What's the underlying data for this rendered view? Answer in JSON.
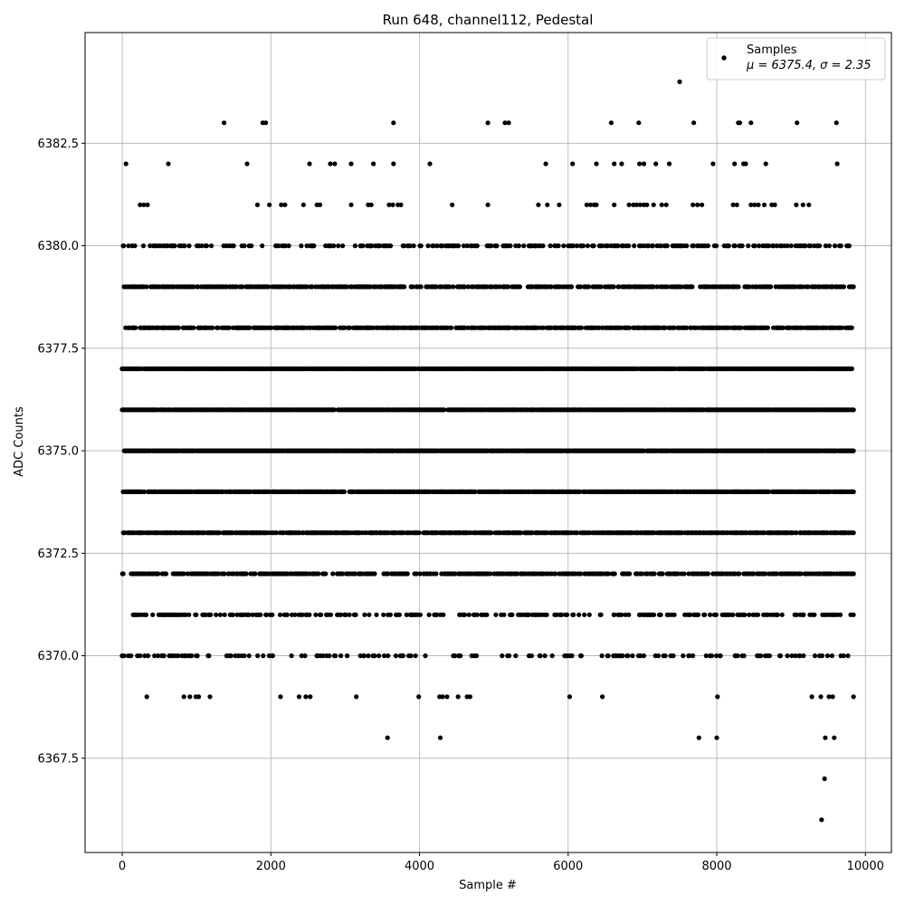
{
  "chart_data": {
    "type": "scatter",
    "title": "Run 648, channel112, Pedestal",
    "xlabel": "Sample #",
    "ylabel": "ADC Counts",
    "xlim": [
      -500,
      10350
    ],
    "ylim": [
      6365.2,
      6385.2
    ],
    "x_ticks": [
      0,
      2000,
      4000,
      6000,
      8000,
      10000
    ],
    "x_tick_labels": [
      "0",
      "2000",
      "4000",
      "6000",
      "8000",
      "10000"
    ],
    "y_ticks": [
      6367.5,
      6370.0,
      6372.5,
      6375.0,
      6377.5,
      6380.0,
      6382.5
    ],
    "y_tick_labels": [
      "6367.5",
      "6370.0",
      "6372.5",
      "6375.0",
      "6377.5",
      "6380.0",
      "6382.5"
    ],
    "grid": true,
    "legend": {
      "placement": "upper-right",
      "marker_label": "Samples",
      "stats_label": "μ = 6375.4, σ = 2.35"
    },
    "marker_color": "#000000",
    "series": [
      {
        "name": "Samples",
        "n_samples": 9850,
        "mean": 6375.4,
        "sigma": 2.35,
        "sample_range": [
          0,
          9850
        ],
        "levels": [
          {
            "y": 6375,
            "density": 0.96
          },
          {
            "y": 6376,
            "density": 0.95
          },
          {
            "y": 6377,
            "density": 0.93
          },
          {
            "y": 6374,
            "density": 0.82
          },
          {
            "y": 6373,
            "density": 0.74
          },
          {
            "y": 6378,
            "density": 0.64
          },
          {
            "y": 6379,
            "density": 0.55
          },
          {
            "y": 6372,
            "density": 0.5
          },
          {
            "y": 6371,
            "density": 0.3
          },
          {
            "y": 6380,
            "density": 0.28
          },
          {
            "y": 6370,
            "density": 0.16
          }
        ],
        "sparse_points": [
          [
            50,
            6382
          ],
          [
            620,
            6382
          ],
          [
            1680,
            6382
          ],
          [
            2520,
            6382
          ],
          [
            2800,
            6382
          ],
          [
            2860,
            6382
          ],
          [
            3080,
            6382
          ],
          [
            3380,
            6382
          ],
          [
            3650,
            6382
          ],
          [
            4140,
            6382
          ],
          [
            5700,
            6382
          ],
          [
            6060,
            6382
          ],
          [
            6380,
            6382
          ],
          [
            6620,
            6382
          ],
          [
            6720,
            6382
          ],
          [
            6960,
            6382
          ],
          [
            7020,
            6382
          ],
          [
            7180,
            6382
          ],
          [
            7360,
            6382
          ],
          [
            7950,
            6382
          ],
          [
            8240,
            6382
          ],
          [
            8360,
            6382
          ],
          [
            8390,
            6382
          ],
          [
            8660,
            6382
          ],
          [
            9620,
            6382
          ],
          [
            1370,
            6383
          ],
          [
            1890,
            6383
          ],
          [
            1930,
            6383
          ],
          [
            3650,
            6383
          ],
          [
            4920,
            6383
          ],
          [
            5150,
            6383
          ],
          [
            5200,
            6383
          ],
          [
            6580,
            6383
          ],
          [
            6950,
            6383
          ],
          [
            7690,
            6383
          ],
          [
            8290,
            6383
          ],
          [
            8310,
            6383
          ],
          [
            8460,
            6383
          ],
          [
            9080,
            6383
          ],
          [
            9610,
            6383
          ],
          [
            7500,
            6384
          ],
          [
            240,
            6381
          ],
          [
            290,
            6381
          ],
          [
            340,
            6381
          ],
          [
            1820,
            6381
          ],
          [
            1980,
            6381
          ],
          [
            2140,
            6381
          ],
          [
            2190,
            6381
          ],
          [
            2440,
            6381
          ],
          [
            2620,
            6381
          ],
          [
            2660,
            6381
          ],
          [
            3080,
            6381
          ],
          [
            3310,
            6381
          ],
          [
            3350,
            6381
          ],
          [
            3590,
            6381
          ],
          [
            3640,
            6381
          ],
          [
            3710,
            6381
          ],
          [
            3750,
            6381
          ],
          [
            4440,
            6381
          ],
          [
            4920,
            6381
          ],
          [
            5600,
            6381
          ],
          [
            5720,
            6381
          ],
          [
            5880,
            6381
          ],
          [
            6250,
            6381
          ],
          [
            6300,
            6381
          ],
          [
            6350,
            6381
          ],
          [
            6380,
            6381
          ],
          [
            6620,
            6381
          ],
          [
            6820,
            6381
          ],
          [
            6880,
            6381
          ],
          [
            6920,
            6381
          ],
          [
            6970,
            6381
          ],
          [
            7020,
            6381
          ],
          [
            7060,
            6381
          ],
          [
            7150,
            6381
          ],
          [
            7260,
            6381
          ],
          [
            7320,
            6381
          ],
          [
            7680,
            6381
          ],
          [
            7740,
            6381
          ],
          [
            7800,
            6381
          ],
          [
            8220,
            6381
          ],
          [
            8270,
            6381
          ],
          [
            8460,
            6381
          ],
          [
            8510,
            6381
          ],
          [
            8560,
            6381
          ],
          [
            8640,
            6381
          ],
          [
            8740,
            6381
          ],
          [
            8780,
            6381
          ],
          [
            9070,
            6381
          ],
          [
            9160,
            6381
          ],
          [
            9240,
            6381
          ],
          [
            330,
            6369
          ],
          [
            830,
            6369
          ],
          [
            910,
            6369
          ],
          [
            990,
            6369
          ],
          [
            1030,
            6369
          ],
          [
            1180,
            6369
          ],
          [
            2130,
            6369
          ],
          [
            2380,
            6369
          ],
          [
            2470,
            6369
          ],
          [
            2530,
            6369
          ],
          [
            3150,
            6369
          ],
          [
            3990,
            6369
          ],
          [
            4270,
            6369
          ],
          [
            4310,
            6369
          ],
          [
            4370,
            6369
          ],
          [
            4520,
            6369
          ],
          [
            4640,
            6369
          ],
          [
            4680,
            6369
          ],
          [
            6020,
            6369
          ],
          [
            6460,
            6369
          ],
          [
            8010,
            6369
          ],
          [
            9280,
            6369
          ],
          [
            9400,
            6369
          ],
          [
            9510,
            6369
          ],
          [
            9560,
            6369
          ],
          [
            9840,
            6369
          ],
          [
            3570,
            6368
          ],
          [
            4280,
            6368
          ],
          [
            7760,
            6368
          ],
          [
            8000,
            6368
          ],
          [
            9460,
            6368
          ],
          [
            9580,
            6368
          ],
          [
            9450,
            6367
          ],
          [
            9410,
            6366
          ],
          [
            20,
            6380
          ],
          [
            9750,
            6380
          ],
          [
            9840,
            6379
          ]
        ]
      }
    ]
  }
}
